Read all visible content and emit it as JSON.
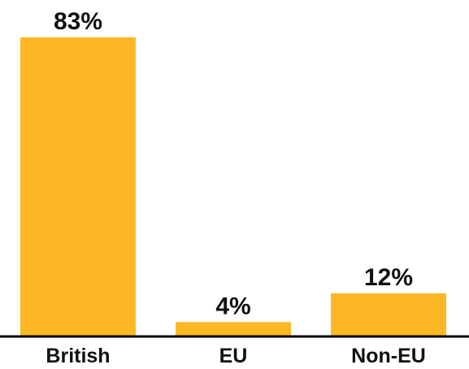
{
  "chart_data": {
    "type": "bar",
    "categories": [
      "British",
      "EU",
      "Non-EU"
    ],
    "values": [
      83,
      4,
      12
    ],
    "data_labels": [
      "83%",
      "4%",
      "12%"
    ],
    "unit": "%",
    "ylim": [
      0,
      83
    ],
    "grid": false,
    "bar_color": "#FDB825",
    "axis_color": "#000000"
  }
}
